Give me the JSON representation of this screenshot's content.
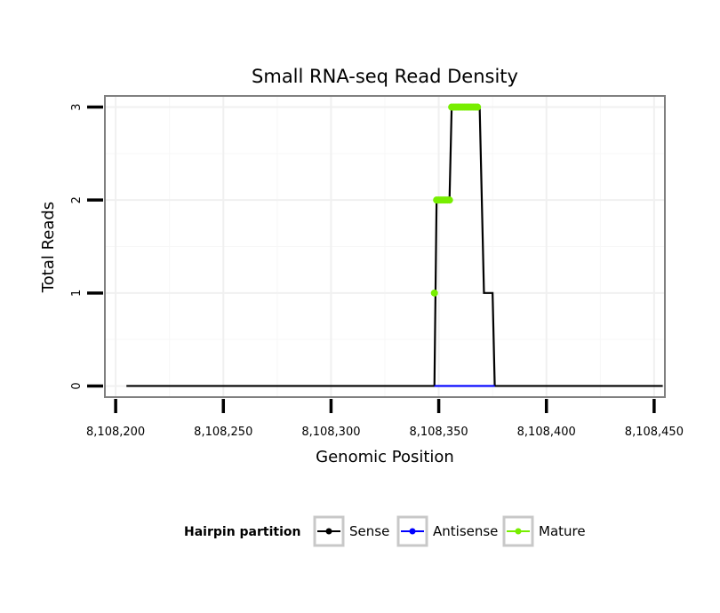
{
  "chart_data": {
    "type": "line",
    "title": "Small RNA-seq Read Density",
    "xlabel": "Genomic Position",
    "ylabel": "Total Reads",
    "xlim": [
      8108195,
      8108455
    ],
    "ylim": [
      -0.12,
      3.12
    ],
    "grid": true,
    "x_ticks": [
      8108200,
      8108250,
      8108300,
      8108350,
      8108400,
      8108450
    ],
    "x_tick_labels": [
      "8,108,200",
      "8,108,250",
      "8,108,300",
      "8,108,350",
      "8,108,400",
      "8,108,450"
    ],
    "y_ticks": [
      0,
      1,
      2,
      3
    ],
    "y_tick_labels": [
      "0",
      "1",
      "2",
      "3"
    ],
    "legend": {
      "title": "Hairpin partition",
      "placement": "bottom",
      "entries": [
        {
          "name": "Sense",
          "color": "#000000"
        },
        {
          "name": "Antisense",
          "color": "#0000ff"
        },
        {
          "name": "Mature",
          "color": "#77ee00"
        }
      ]
    },
    "series": [
      {
        "name": "Sense",
        "color": "#000000",
        "x": [
          8108205,
          8108348,
          8108349,
          8108355,
          8108356,
          8108369,
          8108370,
          8108371,
          8108375,
          8108376,
          8108454
        ],
        "y": [
          0,
          0,
          2,
          2,
          3,
          3,
          2,
          1,
          1,
          0,
          0
        ]
      },
      {
        "name": "Antisense",
        "color": "#0000ff",
        "x": [
          8108348,
          8108376
        ],
        "y": [
          0,
          0
        ]
      },
      {
        "name": "Mature",
        "color": "#77ee00",
        "x": [
          8108348,
          8108349,
          8108350,
          8108351,
          8108352,
          8108353,
          8108354,
          8108355,
          8108356,
          8108357,
          8108358,
          8108359,
          8108360,
          8108361,
          8108362,
          8108363,
          8108364,
          8108365,
          8108366,
          8108367,
          8108368
        ],
        "y": [
          1,
          2,
          2,
          2,
          2,
          2,
          2,
          2,
          3,
          3,
          3,
          3,
          3,
          3,
          3,
          3,
          3,
          3,
          3,
          3,
          3
        ]
      }
    ]
  }
}
